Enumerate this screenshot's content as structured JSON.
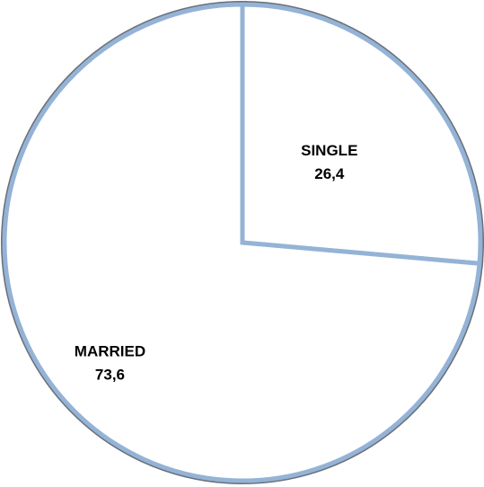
{
  "chart_data": {
    "type": "pie",
    "categories": [
      "SINGLE",
      "MARRIED"
    ],
    "values": [
      26.4,
      73.6
    ],
    "value_labels": [
      "26,4",
      "73,6"
    ],
    "colors": [
      "#ffffff",
      "#ffffff"
    ],
    "edge_color": "#94b3d6"
  }
}
